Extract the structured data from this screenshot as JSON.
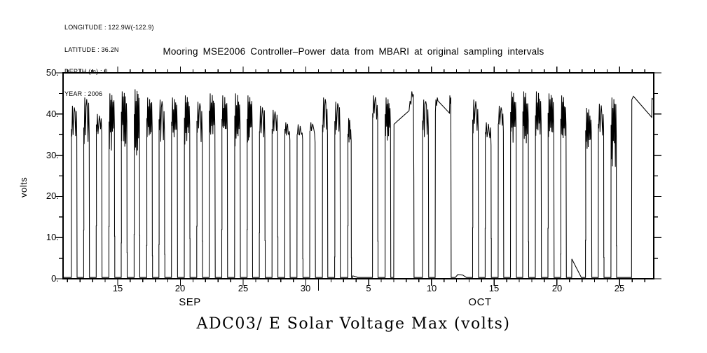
{
  "meta": {
    "lines": [
      "LONGITUDE : 122.9W(-122.9)",
      "LATITUDE : 36.2N",
      "DEPTH (m) : 0",
      "YEAR : 2006"
    ]
  },
  "chart_data": {
    "type": "line",
    "title": "Mooring MSE2006 Controller–Power data from MBARI at original sampling intervals",
    "series_label": "ADC03/ E Solar Voltage Max (volts)",
    "ylabel": "volts",
    "ylim": [
      0,
      50
    ],
    "y_tick_labels": [
      "50.",
      "40.",
      "30.",
      "20.",
      "10.",
      "0."
    ],
    "y_minor_step": 5,
    "x_tick_labels": [
      "15",
      "20",
      "25",
      "30",
      "5",
      "10",
      "15",
      "20",
      "25"
    ],
    "x_axis": {
      "months": [
        "SEP",
        "OCT"
      ],
      "day_ranges": {
        "SEP": [
          11,
          30
        ],
        "OCT": [
          1,
          27
        ]
      },
      "major_tick_every_days": 5,
      "minor_tick_every_days": 1,
      "range_t": [
        -4.35,
        42.72
      ],
      "year": "2006"
    },
    "grid": false,
    "legend": "none",
    "line_color": "#000000",
    "night_level": 0.3,
    "days": [
      {
        "month": "SEP",
        "day": 11,
        "peak": 42,
        "plateau": 38,
        "dip": 4
      },
      {
        "month": "SEP",
        "day": 12,
        "peak": 44,
        "plateau": 38,
        "dip": 6
      },
      {
        "month": "SEP",
        "day": 13,
        "peak": 40,
        "plateau": 38,
        "dip": 3
      },
      {
        "month": "SEP",
        "day": 14,
        "peak": 45,
        "plateau": 40,
        "dip": 9
      },
      {
        "month": "SEP",
        "day": 15,
        "peak": 45.5,
        "plateau": 41,
        "dip": 10
      },
      {
        "month": "SEP",
        "day": 16,
        "peak": 46,
        "plateau": 40,
        "dip": 12
      },
      {
        "month": "SEP",
        "day": 17,
        "peak": 44,
        "plateau": 40,
        "dip": 7
      },
      {
        "month": "SEP",
        "day": 18,
        "peak": 43.5,
        "plateau": 39,
        "dip": 6
      },
      {
        "month": "SEP",
        "day": 19,
        "peak": 44,
        "plateau": 40,
        "dip": 7
      },
      {
        "month": "SEP",
        "day": 20,
        "peak": 44.5,
        "plateau": 40,
        "dip": 8
      },
      {
        "month": "SEP",
        "day": 21,
        "peak": 43,
        "plateau": 39,
        "dip": 6
      },
      {
        "month": "SEP",
        "day": 22,
        "peak": 45,
        "plateau": 41,
        "dip": 8
      },
      {
        "month": "SEP",
        "day": 23,
        "peak": 44.5,
        "plateau": 40,
        "dip": 7
      },
      {
        "month": "SEP",
        "day": 24,
        "peak": 45,
        "plateau": 40,
        "dip": 8
      },
      {
        "month": "SEP",
        "day": 25,
        "peak": 44.5,
        "plateau": 40,
        "dip": 7
      },
      {
        "month": "SEP",
        "day": 26,
        "peak": 42,
        "plateau": 37.5,
        "dip": 4
      },
      {
        "month": "SEP",
        "day": 27,
        "peak": 41,
        "plateau": 37,
        "dip": 3
      },
      {
        "month": "SEP",
        "day": 28,
        "peak": 38,
        "plateau": 36.5,
        "dip": 2
      },
      {
        "month": "SEP",
        "day": 29,
        "peak": 37.5,
        "plateau": 36.5,
        "dip": 2
      },
      {
        "month": "SEP",
        "day": 30,
        "peak": 38,
        "plateau": 37,
        "dip": 2
      },
      {
        "month": "OCT",
        "day": 1,
        "peak": 44,
        "plateau": 38,
        "dip": 3
      },
      {
        "month": "OCT",
        "day": 2,
        "peak": 43,
        "plateau": 38.5,
        "dip": 4
      },
      {
        "month": "OCT",
        "day": 3,
        "peak": 39,
        "plateau": 36,
        "dip": 3,
        "narrow": true
      },
      {
        "month": "OCT",
        "day": 4,
        "kind": "custom",
        "points": [
          [
            18.72,
            0.3
          ],
          [
            18.74,
            0.7
          ],
          [
            19.05,
            0.45
          ],
          [
            19.1,
            0.3
          ]
        ]
      },
      {
        "month": "OCT",
        "day": 5,
        "peak": 44.5,
        "plateau": 42,
        "dip": 5
      },
      {
        "month": "OCT",
        "day": 6,
        "peak": 44,
        "plateau": 40,
        "dip": 7
      },
      {
        "month": "OCT",
        "day": 7,
        "kind": "custom",
        "points": [
          [
            22.0,
            0.3
          ],
          [
            22.02,
            37.5
          ],
          [
            22.3,
            38.3
          ],
          [
            23.22,
            40.8
          ],
          [
            23.3,
            43.2
          ],
          [
            23.37,
            42.3
          ],
          [
            23.44,
            45.5
          ],
          [
            23.5,
            44.3
          ],
          [
            23.56,
            44.8
          ],
          [
            23.6,
            25
          ],
          [
            23.62,
            0.3
          ]
        ]
      },
      {
        "month": "OCT",
        "day": 9,
        "peak": 43.5,
        "plateau": 40,
        "dip": 6
      },
      {
        "month": "OCT",
        "day": 10,
        "kind": "custom",
        "points": [
          [
            25.3,
            0.3
          ],
          [
            25.32,
            40.5
          ],
          [
            25.36,
            43.5
          ],
          [
            25.42,
            42
          ],
          [
            25.47,
            44
          ],
          [
            25.52,
            43.2
          ],
          [
            26.45,
            40.2
          ],
          [
            26.47,
            44.5
          ],
          [
            26.5,
            42.5
          ],
          [
            26.55,
            44
          ],
          [
            26.58,
            0.3
          ]
        ]
      },
      {
        "month": "OCT",
        "day": 12,
        "kind": "custom",
        "points": [
          [
            26.9,
            0.3
          ],
          [
            27.1,
            1.0
          ],
          [
            27.5,
            0.9
          ],
          [
            27.8,
            0.3
          ]
        ]
      },
      {
        "month": "OCT",
        "day": 13,
        "peak": 43.5,
        "plateau": 40,
        "dip": 5
      },
      {
        "month": "OCT",
        "day": 14,
        "peak": 38,
        "plateau": 36,
        "dip": 2
      },
      {
        "month": "OCT",
        "day": 15,
        "peak": 42,
        "plateau": 39,
        "dip": 3
      },
      {
        "month": "OCT",
        "day": 16,
        "peak": 45.5,
        "plateau": 41,
        "dip": 9
      },
      {
        "month": "OCT",
        "day": 17,
        "peak": 45.5,
        "plateau": 41,
        "dip": 9
      },
      {
        "month": "OCT",
        "day": 18,
        "peak": 45.5,
        "plateau": 41,
        "dip": 8
      },
      {
        "month": "OCT",
        "day": 19,
        "peak": 45,
        "plateau": 41,
        "dip": 7
      },
      {
        "month": "OCT",
        "day": 20,
        "peak": 44.5,
        "plateau": 40,
        "dip": 7
      },
      {
        "month": "OCT",
        "day": 21,
        "kind": "custom",
        "points": [
          [
            36.18,
            0.3
          ],
          [
            36.19,
            4.8
          ],
          [
            36.95,
            0.3
          ]
        ]
      },
      {
        "month": "OCT",
        "day": 22,
        "peak": 41.5,
        "plateau": 38,
        "dip": 8
      },
      {
        "month": "OCT",
        "day": 23,
        "peak": 42.5,
        "plateau": 39,
        "dip": 6
      },
      {
        "month": "OCT",
        "day": 24,
        "peak": 44,
        "plateau": 38,
        "dip": 11
      },
      {
        "month": "OCT",
        "day": 25,
        "kind": "no_data"
      },
      {
        "month": "OCT",
        "day": 26,
        "kind": "custom",
        "points": [
          [
            40.95,
            0.3
          ],
          [
            40.97,
            43.5
          ],
          [
            41.1,
            44.3
          ],
          [
            42.56,
            39.2
          ],
          [
            42.58,
            43.8
          ],
          [
            42.72,
            43.5
          ]
        ]
      }
    ]
  }
}
